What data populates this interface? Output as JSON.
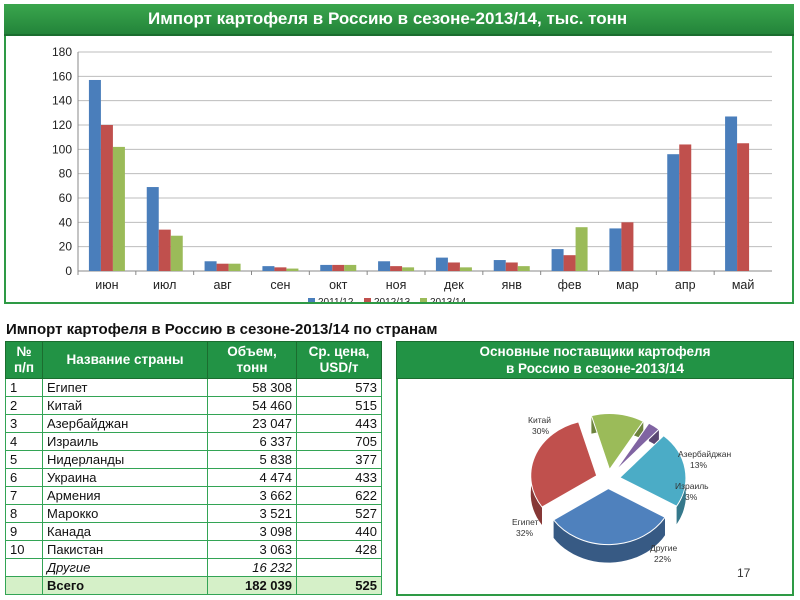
{
  "slide": {
    "title": "Импорт картофеля в Россию в сезоне-2013/14, тыс. тонн",
    "page_number": "17"
  },
  "chart_data": [
    {
      "type": "bar",
      "title": "Импорт картофеля в Россию в сезоне-2013/14, тыс. тонн",
      "categories": [
        "июн",
        "июл",
        "авг",
        "сен",
        "окт",
        "ноя",
        "дек",
        "янв",
        "фев",
        "мар",
        "апр",
        "май"
      ],
      "series": [
        {
          "name": "2011/12",
          "color": "#4a7ebb",
          "values": [
            157,
            69,
            8,
            4,
            5,
            8,
            11,
            9,
            18,
            35,
            96,
            127
          ]
        },
        {
          "name": "2012/13",
          "color": "#c0504d",
          "values": [
            120,
            34,
            6,
            3,
            5,
            4,
            7,
            7,
            13,
            40,
            104,
            105
          ]
        },
        {
          "name": "2013/14",
          "color": "#9bbb59",
          "values": [
            102,
            29,
            6,
            2,
            5,
            3,
            3,
            4,
            36,
            null,
            null,
            null
          ]
        }
      ],
      "yticks": [
        0,
        20,
        40,
        60,
        80,
        100,
        120,
        140,
        160,
        180
      ],
      "ylim": [
        0,
        180
      ],
      "grid": true,
      "legend": "bottom"
    },
    {
      "type": "pie",
      "title_lines": [
        "Основные поставщики картофеля",
        "в Россию в сезоне-2013/14"
      ],
      "slices": [
        {
          "label": "Китай",
          "value": 30,
          "pct": "30%",
          "color": "#c0504d"
        },
        {
          "label": "Азербайджан",
          "value": 13,
          "pct": "13%",
          "color": "#9bbb59"
        },
        {
          "label": "Израиль",
          "value": 3,
          "pct": "3%",
          "color": "#8064a2"
        },
        {
          "label": "Другие",
          "value": 22,
          "pct": "22%",
          "color": "#4bacc6"
        },
        {
          "label": "Египет",
          "value": 32,
          "pct": "32%",
          "color": "#4f81bd"
        }
      ]
    }
  ],
  "table": {
    "heading": "Импорт картофеля в Россию в сезоне-2013/14 по странам",
    "columns": [
      [
        "№",
        "п/п"
      ],
      [
        "Название страны"
      ],
      [
        "Объем,",
        "тонн"
      ],
      [
        "Ср. цена,",
        "USD/т"
      ]
    ],
    "rows": [
      {
        "n": "1",
        "country": "Египет",
        "volume": "58 308",
        "price": "573"
      },
      {
        "n": "2",
        "country": "Китай",
        "volume": "54 460",
        "price": "515"
      },
      {
        "n": "3",
        "country": "Азербайджан",
        "volume": "23 047",
        "price": "443"
      },
      {
        "n": "4",
        "country": "Израиль",
        "volume": "6 337",
        "price": "705"
      },
      {
        "n": "5",
        "country": "Нидерланды",
        "volume": "5 838",
        "price": "377"
      },
      {
        "n": "6",
        "country": "Украина",
        "volume": "4 474",
        "price": "433"
      },
      {
        "n": "7",
        "country": "Армения",
        "volume": "3 662",
        "price": "622"
      },
      {
        "n": "8",
        "country": "Марокко",
        "volume": "3 521",
        "price": "527"
      },
      {
        "n": "9",
        "country": "Канада",
        "volume": "3 098",
        "price": "440"
      },
      {
        "n": "10",
        "country": "Пакистан",
        "volume": "3 063",
        "price": "428"
      }
    ],
    "other": {
      "country": "Другие",
      "volume": "16 232"
    },
    "total": {
      "country": "Всего",
      "volume": "182 039",
      "price": "525"
    }
  }
}
